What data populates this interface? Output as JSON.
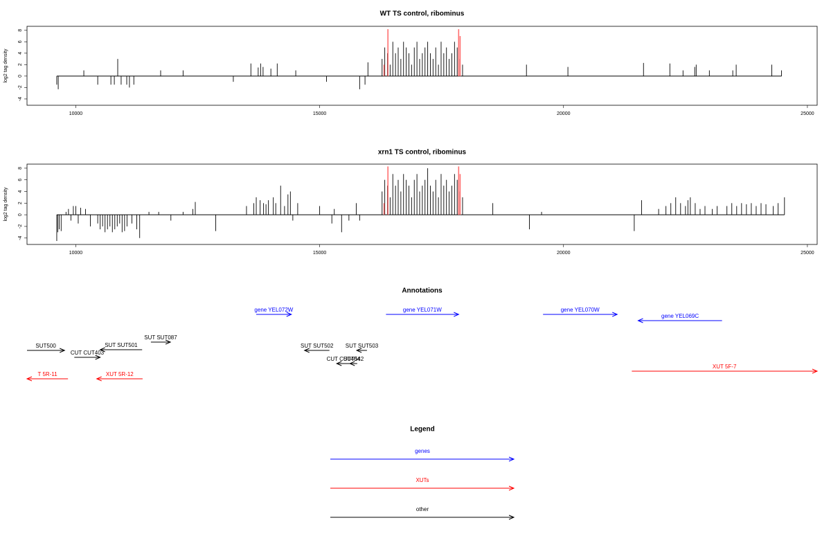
{
  "chart_data": [
    {
      "type": "bar",
      "title": "WT TS control, ribominus",
      "ylabel": "log2 tag density",
      "xlim": [
        9000,
        25200
      ],
      "xticks": [
        10000,
        15000,
        20000,
        25000
      ],
      "ylim": [
        -5.1,
        8.7
      ],
      "yticks": [
        -4,
        -2,
        0,
        2,
        4,
        6,
        8
      ],
      "series": [
        {
          "color": "#000000",
          "x": [
            9610,
            9640,
            10165,
            10450,
            10720,
            10790,
            10860,
            10930,
            11045,
            11100,
            11190,
            11740,
            12200,
            13230,
            13590,
            13740,
            13790,
            13840,
            14000,
            14130,
            14510,
            15140,
            15820,
            15930,
            15990,
            16280,
            16335,
            16390,
            16445,
            16500,
            16555,
            16610,
            16665,
            16720,
            16775,
            16830,
            16885,
            16940,
            16995,
            17050,
            17105,
            17160,
            17215,
            17270,
            17325,
            17380,
            17435,
            17490,
            17545,
            17600,
            17655,
            17710,
            17765,
            17820,
            17875,
            17930,
            19240,
            20090,
            21640,
            22180,
            22450,
            22690,
            22720,
            22990,
            23470,
            23540,
            24270,
            24470
          ],
          "values": [
            -1.5,
            -2.3,
            1,
            -1.5,
            -1.5,
            -1.5,
            3,
            -1.5,
            -1.5,
            -2,
            -1.5,
            1,
            1,
            -1,
            2.2,
            1.5,
            2.2,
            1.6,
            1.3,
            2.2,
            1,
            -1,
            -2.3,
            -1.5,
            2.4,
            3,
            5,
            4,
            2,
            6,
            4,
            5,
            3,
            6,
            5,
            4,
            2,
            5,
            6,
            3,
            4,
            5,
            6,
            4,
            3,
            5,
            2,
            6,
            4,
            5,
            3,
            4,
            6,
            5,
            3,
            2,
            2,
            1.6,
            2.3,
            2.2,
            1,
            1.6,
            2,
            1,
            1,
            2,
            2,
            1
          ]
        },
        {
          "color": "#ff6f6f",
          "x": [
            16320,
            16400,
            17850,
            17880
          ],
          "values": [
            2,
            8.2,
            8.2,
            7
          ]
        }
      ]
    },
    {
      "type": "bar",
      "title": "xrn1 TS control, ribominus",
      "ylabel": "log2 tag density",
      "xlim": [
        9000,
        25200
      ],
      "xticks": [
        10000,
        15000,
        20000,
        25000
      ],
      "ylim": [
        -5.1,
        8.7
      ],
      "yticks": [
        -4,
        -2,
        0,
        2,
        4,
        6,
        8
      ],
      "series": [
        {
          "color": "#000000",
          "x": [
            9610,
            9630,
            9660,
            9700,
            9800,
            9850,
            9900,
            9950,
            10000,
            10050,
            10100,
            10200,
            10300,
            10450,
            10500,
            10550,
            10600,
            10650,
            10700,
            10750,
            10800,
            10850,
            10900,
            10950,
            11000,
            11050,
            11150,
            11250,
            11310,
            11500,
            11700,
            11950,
            12200,
            12400,
            12450,
            12870,
            13500,
            13650,
            13700,
            13780,
            13850,
            13900,
            13950,
            14050,
            14100,
            14200,
            14280,
            14350,
            14400,
            14450,
            14550,
            15000,
            15250,
            15300,
            15450,
            15600,
            15750,
            15820,
            16280,
            16335,
            16390,
            16445,
            16500,
            16555,
            16610,
            16665,
            16720,
            16775,
            16830,
            16885,
            16940,
            16995,
            17050,
            17105,
            17160,
            17215,
            17270,
            17325,
            17380,
            17435,
            17490,
            17545,
            17600,
            17655,
            17710,
            17765,
            17820,
            17875,
            17930,
            18550,
            19300,
            19550,
            21450,
            21600,
            21950,
            22100,
            22200,
            22300,
            22400,
            22500,
            22550,
            22600,
            22700,
            22800,
            22900,
            23050,
            23150,
            23350,
            23450,
            23550,
            23650,
            23750,
            23850,
            23950,
            24050,
            24150,
            24300,
            24400,
            24530
          ],
          "values": [
            -4.5,
            -3,
            -2.5,
            -2.8,
            0.5,
            1,
            -1,
            1.5,
            1.5,
            -1.5,
            1.2,
            1,
            -2,
            -1.5,
            -2.5,
            -2,
            -3,
            -2.5,
            -2,
            -3,
            -2.5,
            -2,
            -1.5,
            -3,
            -2.8,
            -2,
            -1.5,
            -2.5,
            -4,
            0.5,
            0.5,
            -1,
            0.5,
            1,
            2.2,
            -2.8,
            1.5,
            2,
            3,
            2.5,
            2,
            1.8,
            2.5,
            3,
            2,
            5,
            1.5,
            3.5,
            4,
            -1,
            2,
            1.5,
            -1.5,
            1,
            -3,
            -1,
            2,
            -1,
            4,
            6,
            5,
            3,
            7,
            5,
            6,
            4,
            7,
            6,
            5,
            3,
            6,
            7,
            4,
            5,
            6,
            8,
            5,
            4,
            6,
            3,
            7,
            5,
            6,
            4,
            5,
            7,
            6,
            4,
            3,
            2,
            -2.5,
            0.5,
            -2.8,
            2.5,
            1,
            1.5,
            2,
            3,
            2,
            1.5,
            2.5,
            3,
            2,
            1,
            1.5,
            1,
            1.5,
            1.5,
            2,
            1.5,
            2,
            1.8,
            2,
            1.5,
            2,
            1.8,
            1.5,
            2,
            3
          ]
        },
        {
          "color": "#ff6f6f",
          "x": [
            16320,
            16400,
            17850,
            17880
          ],
          "values": [
            2,
            8.3,
            8.3,
            7
          ]
        }
      ]
    },
    {
      "type": "annotation",
      "title": "Annotations",
      "xlim": [
        9000,
        25200
      ],
      "features": [
        {
          "label": "gene YEL072W",
          "start": 13700,
          "end": 14420,
          "strand": "+",
          "color": "#0000ff"
        },
        {
          "label": "gene YEL071W",
          "start": 16360,
          "end": 17850,
          "strand": "+",
          "color": "#0000ff"
        },
        {
          "label": "gene YEL070W",
          "start": 19580,
          "end": 21100,
          "strand": "+",
          "color": "#0000ff"
        },
        {
          "label": "gene YEL069C",
          "start": 21530,
          "end": 23250,
          "strand": "-",
          "color": "#0000ff"
        },
        {
          "label": "SUT500",
          "start": 9000,
          "end": 9770,
          "strand": "+",
          "color": "#000000"
        },
        {
          "label": "CUT CUT403",
          "start": 9970,
          "end": 10500,
          "strand": "+",
          "color": "#000000"
        },
        {
          "label": "SUT SUT501",
          "start": 10500,
          "end": 11360,
          "strand": "-",
          "color": "#000000"
        },
        {
          "label": "SUT SUT087",
          "start": 11540,
          "end": 11940,
          "strand": "+",
          "color": "#000000"
        },
        {
          "label": "SUT SUT502",
          "start": 14690,
          "end": 15200,
          "strand": "-",
          "color": "#000000"
        },
        {
          "label": "SUT SUT503",
          "start": 15760,
          "end": 15970,
          "strand": "-",
          "color": "#000000"
        },
        {
          "label": "CUT CUT404",
          "start": 15350,
          "end": 15620,
          "strand": "-",
          "color": "#000000"
        },
        {
          "label": "SUT542",
          "start": 15620,
          "end": 15770,
          "strand": "-",
          "color": "#000000"
        },
        {
          "label": "T 5R-11",
          "start": 9000,
          "end": 9840,
          "strand": "-",
          "color": "#ff0000"
        },
        {
          "label": "XUT 5R-12",
          "start": 10430,
          "end": 11370,
          "strand": "-",
          "color": "#ff0000"
        },
        {
          "label": "XUT 5F-7",
          "start": 21400,
          "end": 25200,
          "strand": "+",
          "color": "#ff0000"
        }
      ]
    },
    {
      "type": "legend",
      "title": "Legend",
      "items": [
        {
          "label": "genes",
          "color": "#0000ff"
        },
        {
          "label": "XUTs",
          "color": "#ff0000"
        },
        {
          "label": "other",
          "color": "#000000"
        }
      ]
    }
  ]
}
